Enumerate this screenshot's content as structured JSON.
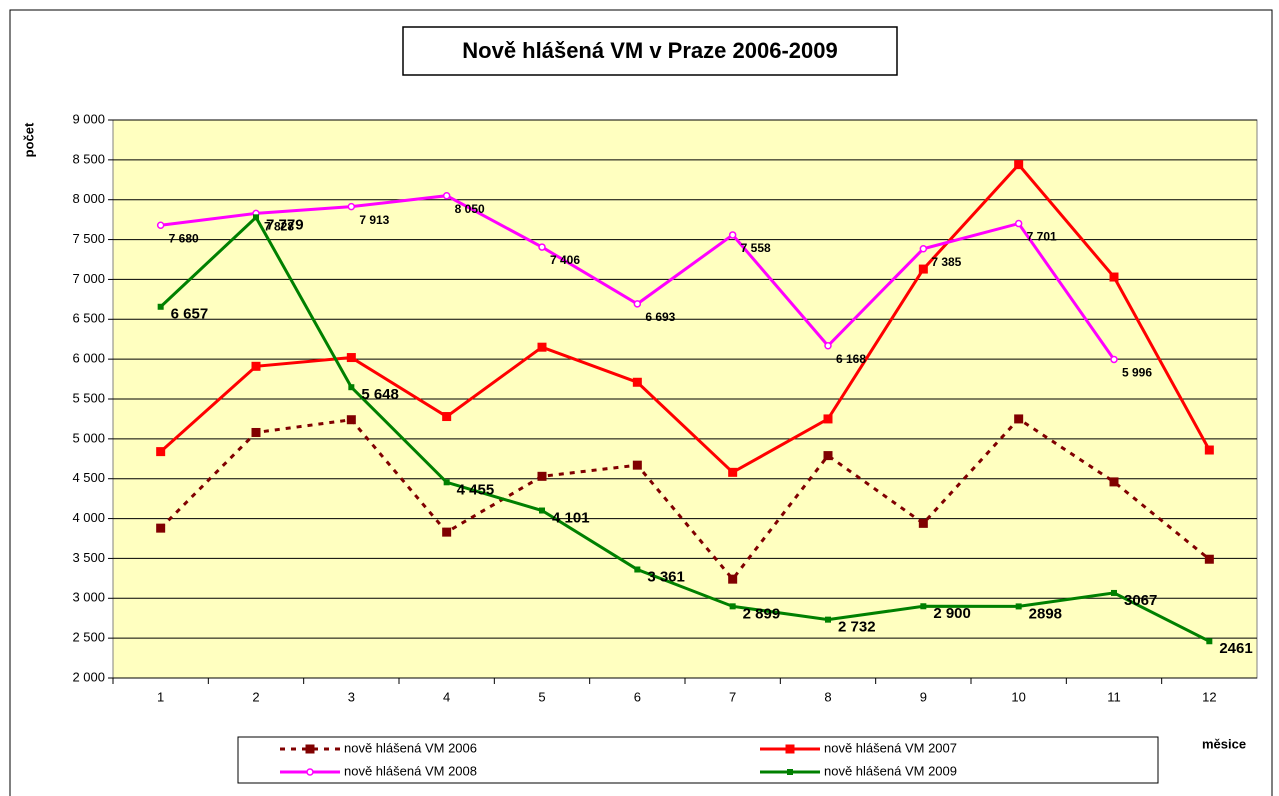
{
  "chart_data": {
    "type": "line",
    "title": "Nově hlášená VM v Praze 2006-2009",
    "y_label": "počet",
    "x_label": "měsice",
    "categories": [
      "1",
      "2",
      "3",
      "4",
      "5",
      "6",
      "7",
      "8",
      "9",
      "10",
      "11",
      "12"
    ],
    "ylim": [
      2000,
      9000
    ],
    "yticks": [
      {
        "value": 2000,
        "label": "2 000"
      },
      {
        "value": 2500,
        "label": "2 500"
      },
      {
        "value": 3000,
        "label": "3 000"
      },
      {
        "value": 3500,
        "label": "3 500"
      },
      {
        "value": 4000,
        "label": "4 000"
      },
      {
        "value": 4500,
        "label": "4 500"
      },
      {
        "value": 5000,
        "label": "5 000"
      },
      {
        "value": 5500,
        "label": "5 500"
      },
      {
        "value": 6000,
        "label": "6 000"
      },
      {
        "value": 6500,
        "label": "6 500"
      },
      {
        "value": 7000,
        "label": "7 000"
      },
      {
        "value": 7500,
        "label": "7 500"
      },
      {
        "value": 8000,
        "label": "8 000"
      },
      {
        "value": 8500,
        "label": "8 500"
      },
      {
        "value": 9000,
        "label": "9 000"
      }
    ],
    "grid": true,
    "legend": "bottom",
    "series": [
      {
        "name": "nově hlášená VM 2006",
        "color": "#800000",
        "dashed": true,
        "marker": "square",
        "values": [
          3880,
          5080,
          5240,
          3830,
          4530,
          4670,
          3240,
          4790,
          3940,
          5250,
          4460,
          3490
        ]
      },
      {
        "name": "nově hlášená VM 2007",
        "color": "#ff0000",
        "marker": "square",
        "values": [
          4840,
          5910,
          6020,
          5280,
          6150,
          5710,
          4580,
          5250,
          7130,
          8440,
          7030,
          4860
        ]
      },
      {
        "name": "nově hlášená VM 2008",
        "color": "#ff00ff",
        "marker": "circle",
        "values": [
          7680,
          7828,
          7913,
          8050,
          7406,
          6693,
          7558,
          6168,
          7385,
          7701,
          5996,
          null
        ],
        "value_labels": [
          "7 680",
          "7 828",
          "7 913",
          "8 050",
          "7 406",
          "6 693",
          "7 558",
          "6 168",
          "7 385",
          "7 701",
          "5 996",
          null
        ]
      },
      {
        "name": "nově hlášená VM 2009",
        "color": "#008000",
        "marker": "small-square",
        "values": [
          6657,
          7779,
          5648,
          4455,
          4101,
          3361,
          2899,
          2732,
          2900,
          2898,
          3067,
          2461
        ],
        "value_labels": [
          "6 657",
          "7 779",
          "5 648",
          "4 455",
          "4 101",
          "3 361",
          "2 899",
          "2 732",
          "2 900",
          "2898",
          "3067",
          "2461"
        ]
      }
    ]
  }
}
